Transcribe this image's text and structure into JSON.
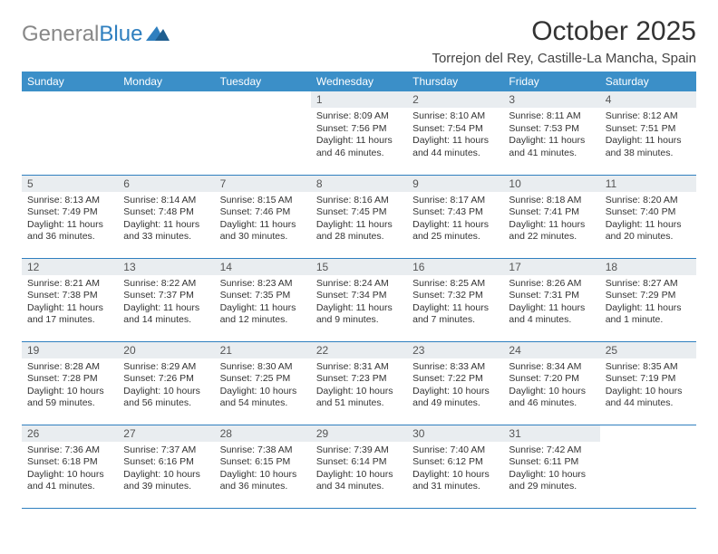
{
  "brand": {
    "text_gray": "General",
    "text_blue": "Blue"
  },
  "title": "October 2025",
  "location": "Torrejon del Rey, Castille-La Mancha, Spain",
  "colors": {
    "header_bg": "#3b8fc8",
    "daynum_bg": "#e9edf0",
    "rule": "#2f7fbf",
    "logo_gray": "#888888",
    "logo_blue": "#2f7fbf"
  },
  "dow": [
    "Sunday",
    "Monday",
    "Tuesday",
    "Wednesday",
    "Thursday",
    "Friday",
    "Saturday"
  ],
  "weeks": [
    [
      {
        "n": "",
        "sr": "",
        "ss": "",
        "dl": ""
      },
      {
        "n": "",
        "sr": "",
        "ss": "",
        "dl": ""
      },
      {
        "n": "",
        "sr": "",
        "ss": "",
        "dl": ""
      },
      {
        "n": "1",
        "sr": "8:09 AM",
        "ss": "7:56 PM",
        "dl": "11 hours and 46 minutes."
      },
      {
        "n": "2",
        "sr": "8:10 AM",
        "ss": "7:54 PM",
        "dl": "11 hours and 44 minutes."
      },
      {
        "n": "3",
        "sr": "8:11 AM",
        "ss": "7:53 PM",
        "dl": "11 hours and 41 minutes."
      },
      {
        "n": "4",
        "sr": "8:12 AM",
        "ss": "7:51 PM",
        "dl": "11 hours and 38 minutes."
      }
    ],
    [
      {
        "n": "5",
        "sr": "8:13 AM",
        "ss": "7:49 PM",
        "dl": "11 hours and 36 minutes."
      },
      {
        "n": "6",
        "sr": "8:14 AM",
        "ss": "7:48 PM",
        "dl": "11 hours and 33 minutes."
      },
      {
        "n": "7",
        "sr": "8:15 AM",
        "ss": "7:46 PM",
        "dl": "11 hours and 30 minutes."
      },
      {
        "n": "8",
        "sr": "8:16 AM",
        "ss": "7:45 PM",
        "dl": "11 hours and 28 minutes."
      },
      {
        "n": "9",
        "sr": "8:17 AM",
        "ss": "7:43 PM",
        "dl": "11 hours and 25 minutes."
      },
      {
        "n": "10",
        "sr": "8:18 AM",
        "ss": "7:41 PM",
        "dl": "11 hours and 22 minutes."
      },
      {
        "n": "11",
        "sr": "8:20 AM",
        "ss": "7:40 PM",
        "dl": "11 hours and 20 minutes."
      }
    ],
    [
      {
        "n": "12",
        "sr": "8:21 AM",
        "ss": "7:38 PM",
        "dl": "11 hours and 17 minutes."
      },
      {
        "n": "13",
        "sr": "8:22 AM",
        "ss": "7:37 PM",
        "dl": "11 hours and 14 minutes."
      },
      {
        "n": "14",
        "sr": "8:23 AM",
        "ss": "7:35 PM",
        "dl": "11 hours and 12 minutes."
      },
      {
        "n": "15",
        "sr": "8:24 AM",
        "ss": "7:34 PM",
        "dl": "11 hours and 9 minutes."
      },
      {
        "n": "16",
        "sr": "8:25 AM",
        "ss": "7:32 PM",
        "dl": "11 hours and 7 minutes."
      },
      {
        "n": "17",
        "sr": "8:26 AM",
        "ss": "7:31 PM",
        "dl": "11 hours and 4 minutes."
      },
      {
        "n": "18",
        "sr": "8:27 AM",
        "ss": "7:29 PM",
        "dl": "11 hours and 1 minute."
      }
    ],
    [
      {
        "n": "19",
        "sr": "8:28 AM",
        "ss": "7:28 PM",
        "dl": "10 hours and 59 minutes."
      },
      {
        "n": "20",
        "sr": "8:29 AM",
        "ss": "7:26 PM",
        "dl": "10 hours and 56 minutes."
      },
      {
        "n": "21",
        "sr": "8:30 AM",
        "ss": "7:25 PM",
        "dl": "10 hours and 54 minutes."
      },
      {
        "n": "22",
        "sr": "8:31 AM",
        "ss": "7:23 PM",
        "dl": "10 hours and 51 minutes."
      },
      {
        "n": "23",
        "sr": "8:33 AM",
        "ss": "7:22 PM",
        "dl": "10 hours and 49 minutes."
      },
      {
        "n": "24",
        "sr": "8:34 AM",
        "ss": "7:20 PM",
        "dl": "10 hours and 46 minutes."
      },
      {
        "n": "25",
        "sr": "8:35 AM",
        "ss": "7:19 PM",
        "dl": "10 hours and 44 minutes."
      }
    ],
    [
      {
        "n": "26",
        "sr": "7:36 AM",
        "ss": "6:18 PM",
        "dl": "10 hours and 41 minutes."
      },
      {
        "n": "27",
        "sr": "7:37 AM",
        "ss": "6:16 PM",
        "dl": "10 hours and 39 minutes."
      },
      {
        "n": "28",
        "sr": "7:38 AM",
        "ss": "6:15 PM",
        "dl": "10 hours and 36 minutes."
      },
      {
        "n": "29",
        "sr": "7:39 AM",
        "ss": "6:14 PM",
        "dl": "10 hours and 34 minutes."
      },
      {
        "n": "30",
        "sr": "7:40 AM",
        "ss": "6:12 PM",
        "dl": "10 hours and 31 minutes."
      },
      {
        "n": "31",
        "sr": "7:42 AM",
        "ss": "6:11 PM",
        "dl": "10 hours and 29 minutes."
      },
      {
        "n": "",
        "sr": "",
        "ss": "",
        "dl": ""
      }
    ]
  ],
  "labels": {
    "sunrise": "Sunrise: ",
    "sunset": "Sunset: ",
    "daylight": "Daylight: "
  }
}
